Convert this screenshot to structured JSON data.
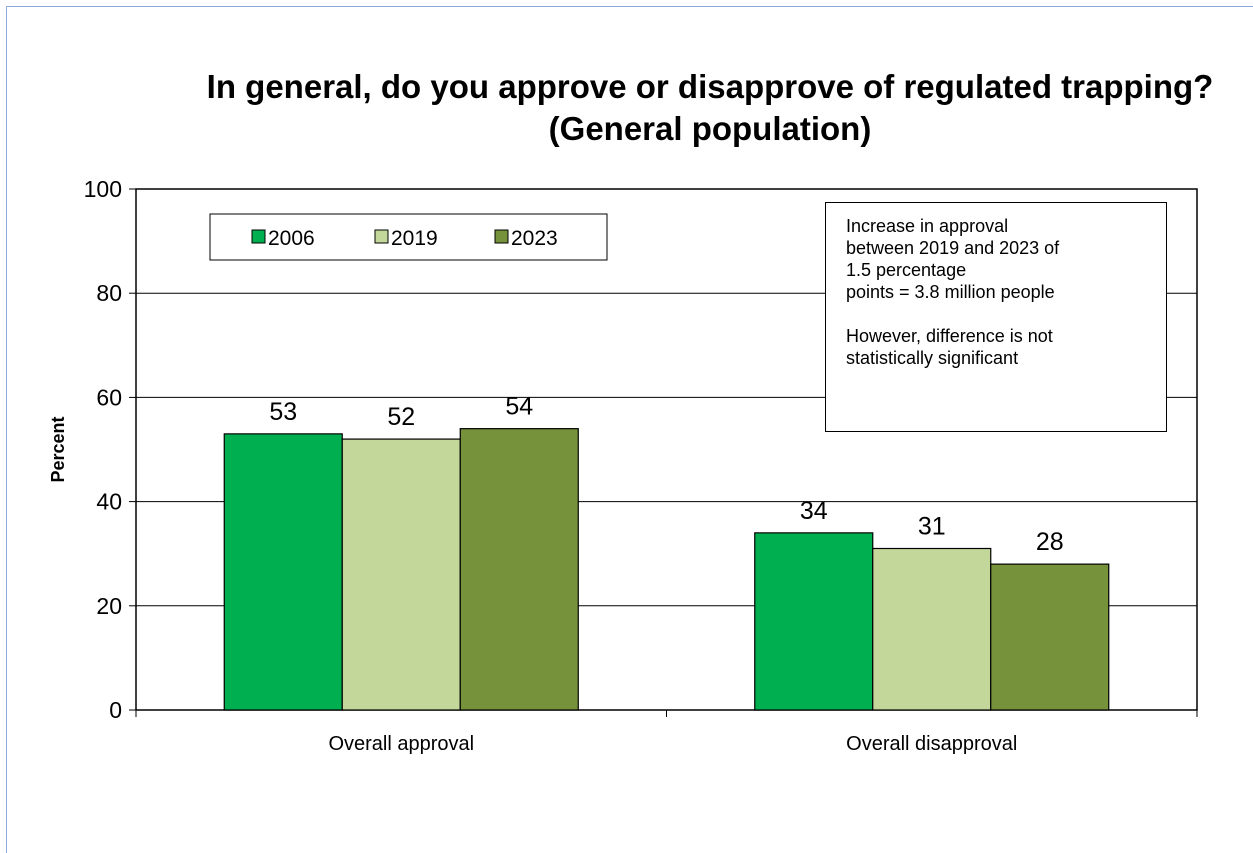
{
  "chart_data": {
    "type": "bar",
    "title": "In general, do you approve or disapprove of regulated trapping? (General population)",
    "ylabel": "Percent",
    "xlabel": "",
    "ylim": [
      0,
      100
    ],
    "yticks": [
      "0",
      "20",
      "40",
      "60",
      "80",
      "100"
    ],
    "grid": true,
    "legend_position": "top-left",
    "categories": [
      "Overall approval",
      "Overall disapproval"
    ],
    "series": [
      {
        "name": "2006",
        "values": [
          53,
          34
        ],
        "labels": [
          "53",
          "34"
        ],
        "color": "#00b050"
      },
      {
        "name": "2019",
        "values": [
          52,
          31
        ],
        "labels": [
          "52",
          "31"
        ],
        "color": "#c4d79b"
      },
      {
        "name": "2023",
        "values": [
          54,
          28
        ],
        "labels": [
          "54",
          "28"
        ],
        "color": "#76933c"
      }
    ],
    "annotation": {
      "line1": "Increase in approval\nbetween 2019 and 2023 of\n1.5 percentage\npoints = 3.8 million people",
      "line2": "However, difference is not\nstatistically significant"
    }
  }
}
